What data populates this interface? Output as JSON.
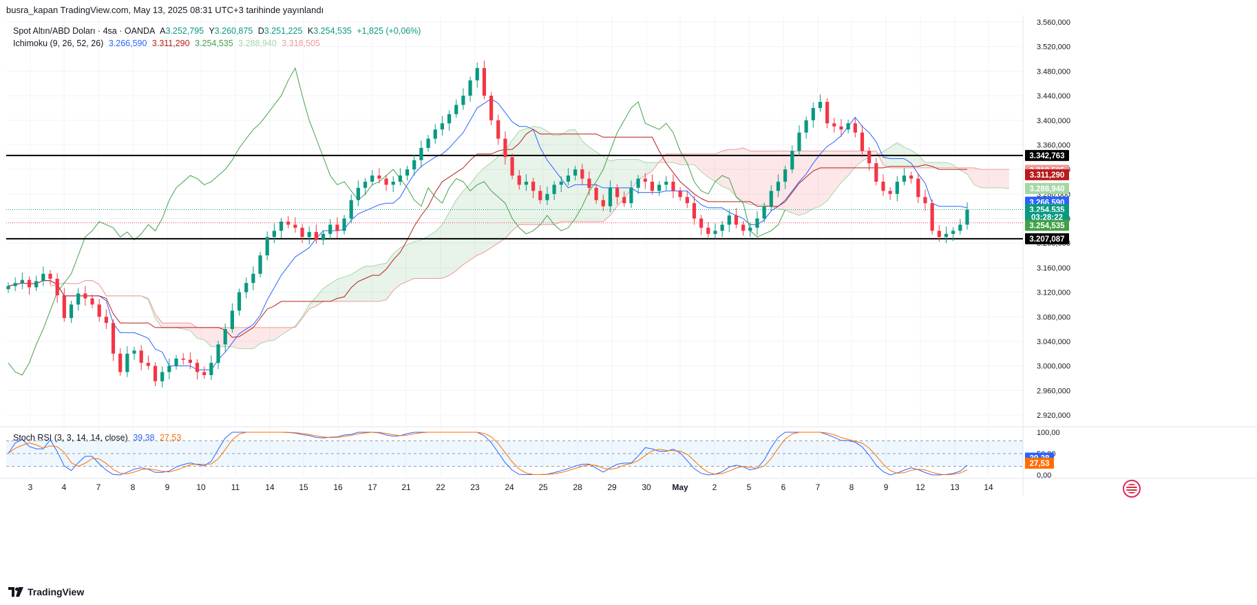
{
  "header": {
    "published": "busra_kapan TradingView.com, May 13, 2025 08:31 UTC+3 tarihinde yayınlandı"
  },
  "legend": {
    "symbol": "Spot Altın/ABD Doları · 4sa · OANDA",
    "open_label": "A",
    "open": "3.252,795",
    "high_label": "Y",
    "high": "3.260,875",
    "low_label": "D",
    "low": "3.251,225",
    "close_label": "K",
    "close": "3.254,535",
    "change": "+1,825 (+0,06%)",
    "ichimoku_name": "Ichimoku (9, 26, 52, 26)",
    "ichimoku_values": [
      "3.266,590",
      "3.311,290",
      "3.254,535",
      "3.288,940",
      "3.318,505"
    ],
    "stoch_name": "Stoch RSI (3, 3, 14, 14, close)",
    "stoch_k": "39,38",
    "stoch_d": "27,53"
  },
  "colors": {
    "up": "#089981",
    "down": "#f23645",
    "tenkan": "#2962ff",
    "kijun": "#b71c1c",
    "chikou": "#43a047",
    "spanA": "#a5d6a7",
    "spanB": "#ef9a9a",
    "kcolor": "#2962ff",
    "dcolor": "#ff6d00",
    "grid": "#f0f3fa",
    "axis": "#131722"
  },
  "footer": {
    "brand": "TradingView"
  },
  "chart_data": {
    "type": "candlestick",
    "title": "Spot Altın/ABD Doları · 4sa · OANDA",
    "y_axis_ticks": [
      "3.560,000",
      "3.520,000",
      "3.480,000",
      "3.440,000",
      "3.400,000",
      "3.360,000",
      "3.320,000",
      "3.280,000",
      "3.240,000",
      "3.200,000",
      "3.160,000",
      "3.120,000",
      "3.080,000",
      "3.040,000",
      "3.000,000",
      "2.960,000",
      "2.920,000"
    ],
    "y_tick_values": [
      3560,
      3520,
      3480,
      3440,
      3400,
      3360,
      3320,
      3280,
      3240,
      3200,
      3160,
      3120,
      3080,
      3040,
      3000,
      2960,
      2920
    ],
    "ylim": [
      2905,
      3578
    ],
    "x_axis_labels": [
      "3",
      "4",
      "7",
      "8",
      "9",
      "10",
      "11",
      "14",
      "15",
      "16",
      "17",
      "21",
      "22",
      "23",
      "24",
      "25",
      "28",
      "29",
      "30",
      "May",
      "2",
      "5",
      "6",
      "7",
      "8",
      "9",
      "12",
      "13",
      "14"
    ],
    "horizontal_levels": [
      {
        "label": "3.342,763",
        "value": 3342.763,
        "color": "#000000"
      },
      {
        "label": "3.207,087",
        "value": 3207.087,
        "color": "#000000"
      }
    ],
    "price_badges": [
      {
        "label": "3.342,763",
        "value": 3342.763,
        "color": "#000000"
      },
      {
        "label": "3.318,505",
        "value": 3318.505,
        "color": "#ef9a9a"
      },
      {
        "label": "3.311,290",
        "value": 3311.29,
        "color": "#b71c1c"
      },
      {
        "label": "3.288,940",
        "value": 3288.94,
        "color": "#a5d6a7"
      },
      {
        "label": "3.266,590",
        "value": 3266.59,
        "color": "#2962ff"
      },
      {
        "label": "3.254,535",
        "value": 3254.535,
        "color": "#089981"
      },
      {
        "label": "03:28:22",
        "value": 3242.0,
        "color": "#089981"
      },
      {
        "label": "3.254,535",
        "value": 3229.0,
        "color": "#43a047"
      },
      {
        "label": "3.207,087",
        "value": 3207.087,
        "color": "#000000"
      }
    ],
    "candles_close": [
      3130,
      3135,
      3140,
      3128,
      3138,
      3150,
      3142,
      3115,
      3078,
      3100,
      3118,
      3110,
      3100,
      3080,
      3070,
      3020,
      2990,
      3020,
      3025,
      3005,
      3000,
      2975,
      2990,
      3000,
      3012,
      3010,
      3005,
      2990,
      2985,
      3005,
      3035,
      3060,
      3090,
      3120,
      3135,
      3150,
      3180,
      3210,
      3220,
      3235,
      3230,
      3225,
      3210,
      3218,
      3205,
      3215,
      3230,
      3220,
      3240,
      3270,
      3290,
      3300,
      3310,
      3305,
      3295,
      3300,
      3310,
      3320,
      3335,
      3355,
      3370,
      3385,
      3395,
      3410,
      3425,
      3440,
      3465,
      3485,
      3440,
      3400,
      3370,
      3340,
      3310,
      3295,
      3300,
      3285,
      3270,
      3280,
      3295,
      3300,
      3310,
      3320,
      3305,
      3290,
      3270,
      3260,
      3290,
      3275,
      3265,
      3290,
      3305,
      3300,
      3285,
      3295,
      3300,
      3285,
      3275,
      3265,
      3240,
      3225,
      3215,
      3220,
      3230,
      3245,
      3230,
      3220,
      3225,
      3240,
      3260,
      3285,
      3300,
      3320,
      3350,
      3380,
      3400,
      3420,
      3430,
      3395,
      3390,
      3385,
      3395,
      3380,
      3350,
      3330,
      3300,
      3285,
      3280,
      3300,
      3310,
      3305,
      3275,
      3265,
      3220,
      3210,
      3215,
      3220,
      3230,
      3254.5
    ],
    "tenkan_last": 3266.59,
    "kijun_last": 3311.29,
    "chikou_last": 3254.535,
    "spanA_last": 3288.94,
    "spanB_last": 3318.505,
    "stoch_rsi": {
      "ylim": [
        0,
        100
      ],
      "y_axis_ticks": [
        "100,00",
        "50,00",
        "0,00"
      ],
      "levels": [
        80,
        20
      ],
      "k_last": 39.38,
      "d_last": 27.53
    }
  }
}
